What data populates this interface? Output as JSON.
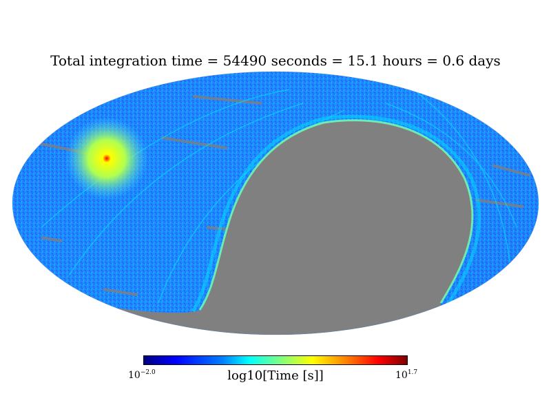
{
  "title": "Total integration time = 54490 seconds = 15.1 hours = 0.6 days",
  "projection": "mollweide",
  "colormap": "jet",
  "colors": {
    "unobserved": "#808080",
    "background": "#ffffff",
    "coverage_low": "#0050ff",
    "coverage_mid": "#00c8ff",
    "hotspot": "#ffff00",
    "hotspot_peak": "#ff0000"
  },
  "colorbar": {
    "label": "log10[Time [s]]",
    "min_base": "10",
    "min_exp": "−2.0",
    "max_base": "10",
    "max_exp": "1.7",
    "min_value": -2.0,
    "max_value": 1.7
  }
}
